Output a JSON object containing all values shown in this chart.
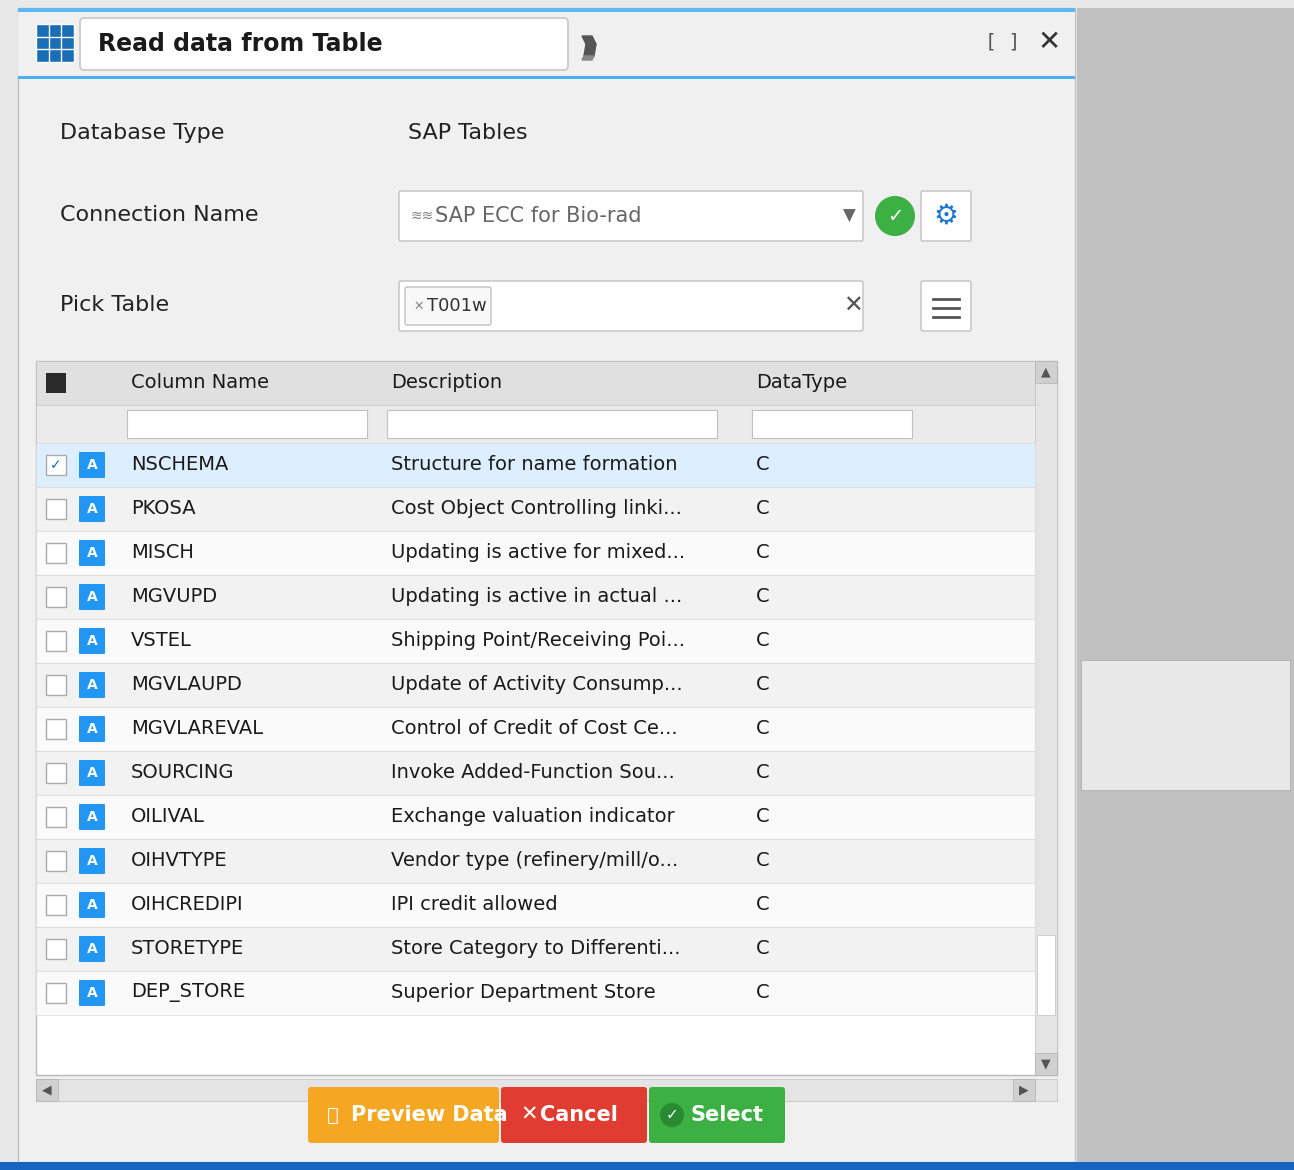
{
  "title": "Read data from Table",
  "bg_color": "#e8e8e8",
  "dialog_bg": "#f5f5f5",
  "blue_top": "#5bb8f5",
  "db_type_label": "Database Type",
  "db_type_value": "SAP Tables",
  "conn_label": "Connection Name",
  "conn_value": "SAP ECC for Bio-rad",
  "pick_table_label": "Pick Table",
  "pick_table_value": "T001w",
  "col_headers": [
    "Column Name",
    "Description",
    "DataType"
  ],
  "rows": [
    [
      "NSCHEMA",
      "Structure for name formation",
      "C",
      true
    ],
    [
      "PKOSA",
      "Cost Object Controlling linki...",
      "C",
      false
    ],
    [
      "MISCH",
      "Updating is active for mixed...",
      "C",
      false
    ],
    [
      "MGVUPD",
      "Updating is active in actual ...",
      "C",
      false
    ],
    [
      "VSTEL",
      "Shipping Point/Receiving Poi...",
      "C",
      false
    ],
    [
      "MGVLAUPD",
      "Update of Activity Consump...",
      "C",
      false
    ],
    [
      "MGVLAREVAL",
      "Control of Credit of Cost Ce...",
      "C",
      false
    ],
    [
      "SOURCING",
      "Invoke Added-Function Sou...",
      "C",
      false
    ],
    [
      "OILIVAL",
      "Exchange valuation indicator",
      "C",
      false
    ],
    [
      "OIHVTYPE",
      "Vendor type (refinery/mill/o...",
      "C",
      false
    ],
    [
      "OIHCREDIPI",
      "IPI credit allowed",
      "C",
      false
    ],
    [
      "STORETYPE",
      "Store Category to Differenti...",
      "C",
      false
    ],
    [
      "DEP_STORE",
      "Superior Department Store",
      "C",
      false
    ]
  ],
  "btn_preview": {
    "label": " Preview Data",
    "color": "#f5a623"
  },
  "btn_cancel": {
    "label": " Cancel",
    "color": "#e03c31"
  },
  "btn_select": {
    "label": " Select",
    "color": "#3cb043"
  },
  "icon_color_a": "#2196F3",
  "sidebar_color": "#b0b0b0",
  "bottom_stripe": "#1565C0"
}
